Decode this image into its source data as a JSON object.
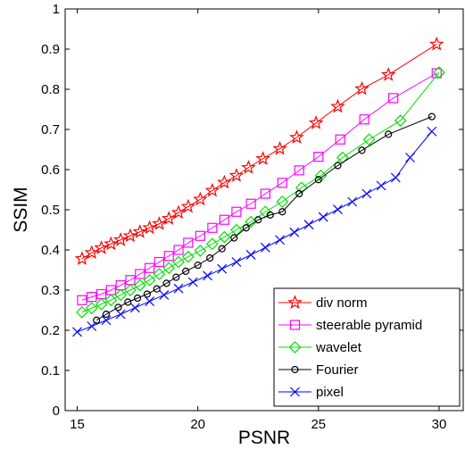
{
  "chart_data": {
    "type": "line",
    "title": "",
    "xlabel": "PSNR",
    "ylabel": "SSIM",
    "xlim": [
      14.5,
      31
    ],
    "ylim": [
      0,
      1
    ],
    "xticks": [
      "15",
      "20",
      "25",
      "30"
    ],
    "yticks": [
      "0",
      "0.1",
      "0.2",
      "0.3",
      "0.4",
      "0.5",
      "0.6",
      "0.7",
      "0.8",
      "0.9",
      "1"
    ],
    "grid": false,
    "legend_position": "bottom-right",
    "series": [
      {
        "name": "div norm",
        "color": "#ff0000",
        "marker": "star",
        "x": [
          15.2,
          15.6,
          16.0,
          16.4,
          16.8,
          17.2,
          17.6,
          18.0,
          18.4,
          18.8,
          19.2,
          19.6,
          20.1,
          20.6,
          21.1,
          21.6,
          22.1,
          22.7,
          23.4,
          24.1,
          24.9,
          25.8,
          26.8,
          27.9,
          29.9
        ],
        "y": [
          0.378,
          0.393,
          0.405,
          0.415,
          0.425,
          0.435,
          0.445,
          0.455,
          0.465,
          0.478,
          0.493,
          0.508,
          0.526,
          0.548,
          0.568,
          0.585,
          0.605,
          0.627,
          0.652,
          0.68,
          0.716,
          0.757,
          0.801,
          0.836,
          0.912
        ]
      },
      {
        "name": "steerable pyramid",
        "color": "#ff00ff",
        "marker": "square",
        "x": [
          15.2,
          15.6,
          16.0,
          16.4,
          16.8,
          17.2,
          17.6,
          18.0,
          18.4,
          18.8,
          19.2,
          19.6,
          20.1,
          20.6,
          21.1,
          21.6,
          22.2,
          22.8,
          23.5,
          24.2,
          25.0,
          25.9,
          26.9,
          28.1,
          29.9
        ],
        "y": [
          0.275,
          0.283,
          0.29,
          0.3,
          0.312,
          0.325,
          0.34,
          0.355,
          0.37,
          0.385,
          0.4,
          0.418,
          0.435,
          0.455,
          0.475,
          0.495,
          0.515,
          0.54,
          0.567,
          0.598,
          0.632,
          0.675,
          0.725,
          0.778,
          0.84
        ]
      },
      {
        "name": "wavelet",
        "color": "#00dd00",
        "marker": "diamond",
        "x": [
          15.2,
          15.6,
          16.0,
          16.4,
          16.8,
          17.2,
          17.6,
          18.0,
          18.4,
          18.8,
          19.2,
          19.6,
          20.1,
          20.6,
          21.1,
          21.6,
          22.2,
          22.8,
          23.5,
          24.3,
          25.1,
          26.0,
          27.1,
          28.4,
          30.0
        ],
        "y": [
          0.245,
          0.255,
          0.265,
          0.275,
          0.288,
          0.3,
          0.312,
          0.325,
          0.34,
          0.355,
          0.37,
          0.383,
          0.398,
          0.415,
          0.432,
          0.45,
          0.47,
          0.495,
          0.52,
          0.555,
          0.585,
          0.63,
          0.675,
          0.722,
          0.842
        ]
      },
      {
        "name": "Fourier",
        "color": "#000000",
        "marker": "circle",
        "x": [
          15.8,
          16.2,
          16.7,
          17.1,
          17.5,
          17.9,
          18.3,
          18.7,
          19.1,
          19.5,
          20.0,
          20.5,
          21.0,
          21.5,
          22.0,
          22.5,
          23.0,
          23.5,
          24.2,
          25.0,
          25.8,
          26.8,
          27.9,
          29.7
        ],
        "y": [
          0.225,
          0.24,
          0.257,
          0.27,
          0.28,
          0.29,
          0.303,
          0.317,
          0.332,
          0.347,
          0.362,
          0.38,
          0.403,
          0.43,
          0.455,
          0.475,
          0.487,
          0.495,
          0.54,
          0.575,
          0.61,
          0.648,
          0.688,
          0.732
        ]
      },
      {
        "name": "pixel",
        "color": "#0000ff",
        "marker": "cross",
        "x": [
          15.0,
          15.6,
          16.2,
          16.8,
          17.4,
          18.0,
          18.6,
          19.2,
          19.8,
          20.4,
          21.0,
          21.6,
          22.2,
          22.8,
          23.4,
          24.0,
          24.6,
          25.2,
          25.8,
          26.4,
          27.0,
          27.6,
          28.2,
          28.8,
          29.7
        ],
        "y": [
          0.196,
          0.21,
          0.225,
          0.24,
          0.256,
          0.272,
          0.288,
          0.304,
          0.32,
          0.336,
          0.353,
          0.37,
          0.388,
          0.406,
          0.425,
          0.444,
          0.463,
          0.482,
          0.501,
          0.52,
          0.54,
          0.56,
          0.58,
          0.63,
          0.695
        ]
      }
    ]
  }
}
